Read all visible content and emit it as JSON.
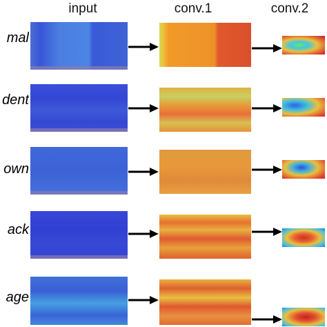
{
  "headers": {
    "input": "input",
    "conv1": "conv.1",
    "conv2": "conv.2"
  },
  "rows": [
    {
      "label": "mal"
    },
    {
      "label": "dent"
    },
    {
      "label": "own"
    },
    {
      "label": "ack"
    },
    {
      "label": "age"
    }
  ],
  "colors": {
    "input_blue": "#3a55d6",
    "conv_orange": "#e8902a",
    "conv_red": "#d8402a",
    "conv_yellow": "#e8c43a",
    "conv_cyan": "#40c8e0",
    "arrow": "#000000"
  }
}
